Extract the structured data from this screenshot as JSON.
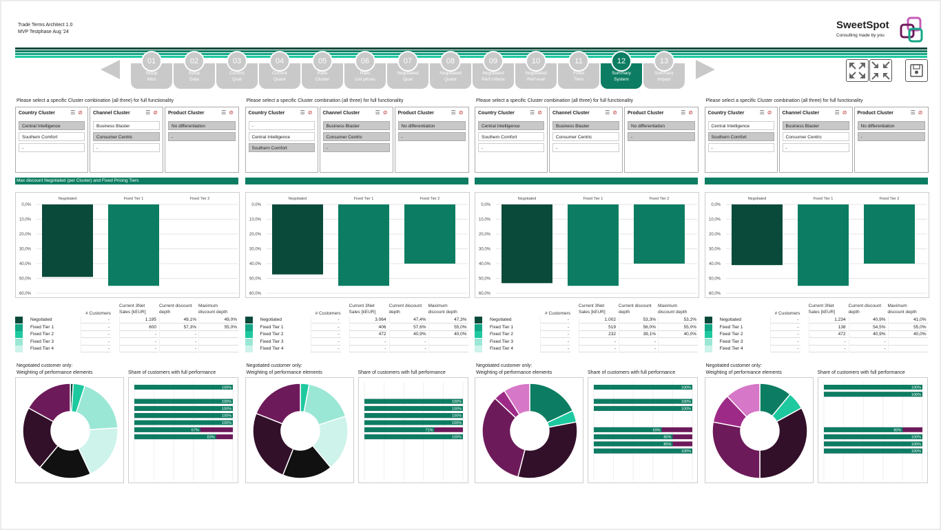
{
  "header": {
    "app_title": "Trade Terms Architect 1.0",
    "subtitle": "MVP Testphase Aug '24"
  },
  "brand": {
    "name": "SweetSpot",
    "tagline": "Consulting made by you"
  },
  "colors": {
    "dark": "#0a4a3b",
    "mid": "#0c7d62",
    "teal": "#12a786",
    "bright": "#1ec9a0",
    "light": "#9be7d5",
    "pale": "#cdf3ea",
    "plum_dark": "#33102a",
    "plum": "#6d1a5a",
    "magenta": "#9e2a87",
    "orchid": "#d677c8"
  },
  "steps": [
    {
      "num": "01",
      "label": "Setup\nIntro"
    },
    {
      "num": "02",
      "label": "Setup\nData"
    },
    {
      "num": "03",
      "label": "Current\nQual"
    },
    {
      "num": "04",
      "label": "Current\nQuant"
    },
    {
      "num": "05",
      "label": "Rails\nCluster"
    },
    {
      "num": "06",
      "label": "Rails\nList prices"
    },
    {
      "num": "07",
      "label": "Negotiated\nQual"
    },
    {
      "num": "08",
      "label": "Negotiated\nQuant"
    },
    {
      "num": "09",
      "label": "Negotiated\nPerf criteria"
    },
    {
      "num": "10",
      "label": "Negotiated\nPerf eval"
    },
    {
      "num": "11",
      "label": "Fixed\nTiers"
    },
    {
      "num": "12",
      "label": "Summary\nSystem",
      "active": true
    },
    {
      "num": "13",
      "label": "Summary\nImpact"
    }
  ],
  "labels": {
    "instruction": "Please select a specific Cluster combination (all three) for full functionality",
    "country": "Country Cluster",
    "channel": "Channel Cluster",
    "product": "Product Cluster",
    "section_bar": "Max discount Negotiated (per Cluster) and Fixed Pricing Tiers",
    "col_customers": "# Customers",
    "col_sales": "Current 3Net\nSales [kEUR]",
    "col_current": "Current discount\ndepth",
    "col_max": "Maximum\ndiscount depth",
    "neg_only": "Negotiated customer only:",
    "weighting": "Weighting of performance elements",
    "share": "Share of customers with full performance",
    "row_names": [
      "Negotiated",
      "Fixed Tier 1",
      "Fixed Tier 2",
      "Fixed Tier 3",
      "Fixed Tier 4"
    ]
  },
  "panels": [
    {
      "show_section_label": true,
      "country": [
        {
          "t": "Central Intelligence",
          "s": true
        },
        {
          "t": "Southern Comfort",
          "s": false
        },
        {
          "t": "-",
          "s": false
        }
      ],
      "channel": [
        {
          "t": "Business Blaster",
          "s": false
        },
        {
          "t": "Consumer Centric",
          "s": true
        },
        {
          "t": "-",
          "s": false
        }
      ],
      "product": [
        {
          "t": "No differentiation",
          "s": true
        },
        {
          "t": "-",
          "s": true
        }
      ],
      "chart_data": {
        "type": "bar",
        "categories": [
          "Negotiated",
          "Fixed Tier 1",
          "Fixed Tier 2"
        ],
        "values": [
          49.0,
          55.0,
          0
        ],
        "ylim": [
          0,
          60
        ],
        "yticks": [
          "0,0%",
          "10,0%",
          "20,0%",
          "30,0%",
          "40,0%",
          "50,0%",
          "60,0%"
        ],
        "inverted": true
      },
      "table": [
        [
          "-",
          "1.195",
          "49,1%",
          "49,0%"
        ],
        [
          "-",
          "600",
          "57,3%",
          "55,0%"
        ],
        [
          "-",
          "-",
          "-",
          ""
        ],
        [
          "-",
          "-",
          "-",
          ""
        ],
        [
          "-",
          "-",
          "-",
          ""
        ]
      ],
      "donut": [
        1,
        4,
        19,
        19,
        18,
        22,
        17
      ],
      "hbars": [
        {
          "v": 100,
          "l": "100%"
        },
        null,
        {
          "v": 100,
          "l": "100%"
        },
        {
          "v": 100,
          "l": "100%"
        },
        {
          "v": 100,
          "l": "100%"
        },
        {
          "v": 100,
          "l": "100%"
        },
        {
          "v": 67,
          "l": "67%"
        },
        {
          "v": 83,
          "l": "83%"
        }
      ]
    },
    {
      "show_section_label": false,
      "country": [
        {
          "t": "-",
          "s": false
        },
        {
          "t": "Central Intelligence",
          "s": false
        },
        {
          "t": "Southern Comfort",
          "s": true
        }
      ],
      "channel": [
        {
          "t": "Business Blaster",
          "s": true
        },
        {
          "t": "Consumer Centric",
          "s": true
        },
        {
          "t": "-",
          "s": true
        }
      ],
      "product": [
        {
          "t": "No differentiation",
          "s": true
        },
        {
          "t": "-",
          "s": true
        }
      ],
      "chart_data": {
        "type": "bar",
        "categories": [
          "Negotiated",
          "Fixed Tier 1",
          "Fixed Tier 2"
        ],
        "values": [
          47.3,
          55.0,
          40.0
        ],
        "ylim": [
          0,
          60
        ],
        "yticks": [
          "0,0%",
          "10,0%",
          "20,0%",
          "30,0%",
          "40,0%",
          "50,0%",
          "60,0%"
        ],
        "inverted": true
      },
      "table": [
        [
          "-",
          "3.064",
          "47,4%",
          "47,3%"
        ],
        [
          "-",
          "406",
          "57,6%",
          "55,0%"
        ],
        [
          "-",
          "472",
          "40,9%",
          "40,0%"
        ],
        [
          "-",
          "-",
          "-",
          ""
        ],
        [
          "-",
          "-",
          "-",
          ""
        ]
      ],
      "donut": [
        3,
        17,
        19,
        17,
        25,
        19
      ],
      "hbars": [
        null,
        null,
        {
          "v": 100,
          "l": "100%"
        },
        {
          "v": 100,
          "l": "100%"
        },
        {
          "v": 100,
          "l": "100%"
        },
        {
          "v": 100,
          "l": "100%"
        },
        {
          "v": 71,
          "l": "71%"
        },
        {
          "v": 100,
          "l": "100%"
        }
      ]
    },
    {
      "show_section_label": false,
      "country": [
        {
          "t": "Central Intelligence",
          "s": true
        },
        {
          "t": "Southern Comfort",
          "s": false
        },
        {
          "t": "-",
          "s": false
        }
      ],
      "channel": [
        {
          "t": "Business Blaster",
          "s": true
        },
        {
          "t": "Consumer Centric",
          "s": false
        },
        {
          "t": "-",
          "s": false
        }
      ],
      "product": [
        {
          "t": "No differentiation",
          "s": true
        },
        {
          "t": "-",
          "s": true
        }
      ],
      "chart_data": {
        "type": "bar",
        "categories": [
          "Negotiated",
          "Fixed Tier 1",
          "Fixed Tier 2"
        ],
        "values": [
          53.2,
          55.0,
          40.0
        ],
        "ylim": [
          0,
          60
        ],
        "yticks": [
          "0,0%",
          "10,0%",
          "20,0%",
          "30,0%",
          "40,0%",
          "50,0%",
          "60,0%"
        ],
        "inverted": true
      },
      "table": [
        [
          "-",
          "1.002",
          "53,3%",
          "53,2%"
        ],
        [
          "-",
          "519",
          "56,0%",
          "55,0%"
        ],
        [
          "-",
          "232",
          "39,1%",
          "40,0%"
        ],
        [
          "-",
          "-",
          "-",
          ""
        ],
        [
          "-",
          "-",
          "-",
          ""
        ]
      ],
      "donut": [
        18,
        4,
        32,
        33,
        4,
        9
      ],
      "hbars": [
        {
          "v": 100,
          "l": "100%"
        },
        null,
        {
          "v": 100,
          "l": "100%"
        },
        {
          "v": 100,
          "l": "100%"
        },
        null,
        null,
        {
          "v": 69,
          "l": "69%"
        },
        {
          "v": 80,
          "l": "80%"
        },
        {
          "v": 80,
          "l": "80%"
        },
        {
          "v": 100,
          "l": "100%"
        }
      ]
    },
    {
      "show_section_label": false,
      "country": [
        {
          "t": "Central Intelligence",
          "s": false
        },
        {
          "t": "Southern Comfort",
          "s": true
        },
        {
          "t": "-",
          "s": false
        }
      ],
      "channel": [
        {
          "t": "Business Blaster",
          "s": true
        },
        {
          "t": "Consumer Centric",
          "s": false
        },
        {
          "t": "-",
          "s": false
        }
      ],
      "product": [
        {
          "t": "No differentiation",
          "s": true
        },
        {
          "t": "-",
          "s": true
        }
      ],
      "chart_data": {
        "type": "bar",
        "categories": [
          "Negotiated",
          "Fixed Tier 1",
          "Fixed Tier 2"
        ],
        "values": [
          41.0,
          55.0,
          40.0
        ],
        "ylim": [
          0,
          60
        ],
        "yticks": [
          "0,0%",
          "10,0%",
          "20,0%",
          "30,0%",
          "40,0%",
          "50,0%",
          "60,0%"
        ],
        "inverted": true
      },
      "table": [
        [
          "-",
          "1.234",
          "40,9%",
          "41,0%"
        ],
        [
          "-",
          "138",
          "54,5%",
          "55,0%"
        ],
        [
          "-",
          "472",
          "40,9%",
          "40,0%"
        ],
        [
          "-",
          "-",
          "-",
          ""
        ],
        [
          "-",
          "-",
          "-",
          ""
        ]
      ],
      "donut": [
        11,
        6,
        33,
        28,
        10,
        12
      ],
      "hbars": [
        {
          "v": 100,
          "l": "100%"
        },
        {
          "v": 100,
          "l": "100%"
        },
        null,
        null,
        null,
        null,
        {
          "v": 80,
          "l": "80%"
        },
        {
          "v": 100,
          "l": "100%"
        },
        {
          "v": 100,
          "l": "100%"
        },
        {
          "v": 100,
          "l": "100%"
        }
      ]
    }
  ]
}
